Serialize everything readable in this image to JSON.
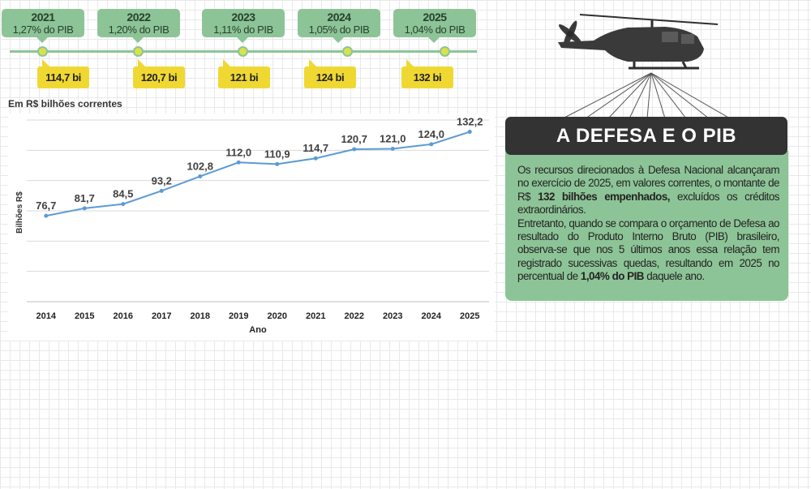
{
  "timeline": [
    {
      "year": "2021",
      "pct": "1,27% do PIB",
      "value": "114,7 bi"
    },
    {
      "year": "2022",
      "pct": "1,20% do PIB",
      "value": "120,7 bi"
    },
    {
      "year": "2023",
      "pct": "1,11% do PIB",
      "value": "121 bi"
    },
    {
      "year": "2024",
      "pct": "1,05% do PIB",
      "value": "124 bi"
    },
    {
      "year": "2025",
      "pct": "1,04% do PIB",
      "value": "132 bi"
    }
  ],
  "caption": "Em R$ bilhões correntes",
  "panel": {
    "title": "A DEFESA E O PIB",
    "p1_a": "Os recursos direcionados à Defesa Nacional alcançaram no exercício de 2025, em valores correntes, o montante de R$ ",
    "p1_bold": "132 bilhões empenhados,",
    "p1_b": " excluídos os créditos extraordinários.",
    "p2_a": "Entretanto, quando se compara o orçamento de Defesa ao resultado do Produto Interno Bruto (PIB) brasileiro, observa-se que nos 5 últimos anos essa relação tem registrado sucessivas quedas, resultando em 2025 no percentual de ",
    "p2_bold": "1,04% do PIB",
    "p2_b": " daquele ano."
  },
  "colors": {
    "green": "#8dc497",
    "yellow": "#f0d833",
    "dark": "#333333",
    "line": "#5b9bd5"
  },
  "chart_data": {
    "type": "line",
    "x": [
      "2014",
      "2015",
      "2016",
      "2017",
      "2018",
      "2019",
      "2020",
      "2021",
      "2022",
      "2023",
      "2024",
      "2025"
    ],
    "values": [
      76.7,
      81.7,
      84.5,
      93.2,
      102.8,
      112.0,
      110.9,
      114.7,
      120.7,
      121.0,
      124.0,
      132.2
    ],
    "data_labels": [
      "76,7",
      "81,7",
      "84,5",
      "93,2",
      "102,8",
      "112,0",
      "110,9",
      "114,7",
      "120,7",
      "121,0",
      "124,0",
      "132,2"
    ],
    "xlabel": "Ano",
    "ylabel": "Bilhões R$",
    "ylim": [
      20,
      140
    ],
    "grid": true
  }
}
